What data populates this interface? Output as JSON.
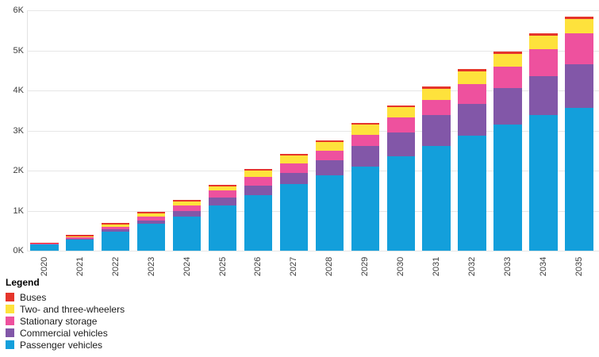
{
  "legend": {
    "title": "Legend"
  },
  "chart_data": {
    "type": "bar",
    "stacked": true,
    "title": "",
    "xlabel": "",
    "ylabel": "",
    "grid": true,
    "legend_position": "bottom-left",
    "ylim": [
      0,
      6000
    ],
    "ytick_labels": [
      "0K",
      "1K",
      "2K",
      "3K",
      "4K",
      "5K",
      "6K"
    ],
    "categories": [
      "2020",
      "2021",
      "2022",
      "2023",
      "2024",
      "2025",
      "2026",
      "2027",
      "2028",
      "2029",
      "2030",
      "2031",
      "2032",
      "2033",
      "2034",
      "2035"
    ],
    "series": [
      {
        "name": "Passenger vehicles",
        "color": "#139fdb",
        "values": [
          160,
          280,
          480,
          680,
          860,
          1130,
          1380,
          1655,
          1890,
          2100,
          2350,
          2620,
          2870,
          3145,
          3380,
          3560
        ]
      },
      {
        "name": "Commercial vehicles",
        "color": "#8257a8",
        "values": [
          10,
          25,
          50,
          80,
          135,
          200,
          235,
          285,
          365,
          515,
          595,
          775,
          790,
          910,
          975,
          1100
        ]
      },
      {
        "name": "Stationary storage",
        "color": "#ee519e",
        "values": [
          15,
          45,
          65,
          95,
          135,
          180,
          225,
          245,
          245,
          280,
          385,
          370,
          505,
          530,
          680,
          775
        ]
      },
      {
        "name": "Two- and three-wheelers",
        "color": "#fee23c",
        "values": [
          5,
          15,
          50,
          85,
          100,
          95,
          165,
          195,
          210,
          250,
          245,
          265,
          305,
          330,
          330,
          350
        ]
      },
      {
        "name": "Buses",
        "color": "#e5352b",
        "values": [
          10,
          25,
          40,
          30,
          45,
          40,
          40,
          40,
          50,
          50,
          45,
          65,
          65,
          65,
          65,
          65
        ]
      }
    ],
    "legend_order": [
      "Buses",
      "Two- and three-wheelers",
      "Stationary storage",
      "Commercial vehicles",
      "Passenger vehicles"
    ]
  }
}
